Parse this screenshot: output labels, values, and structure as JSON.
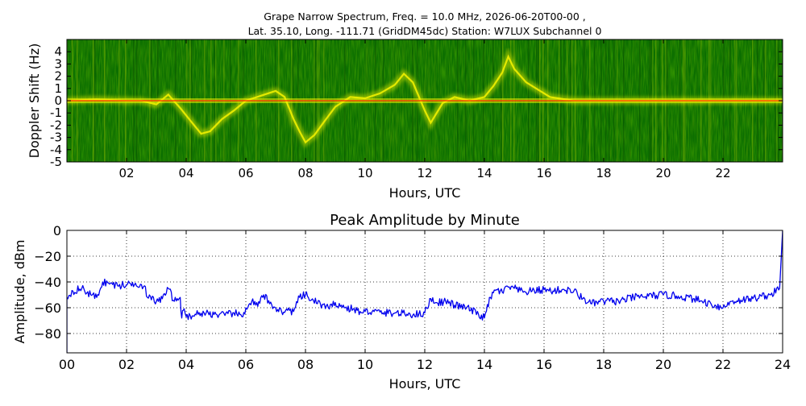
{
  "chart_data": [
    {
      "type": "heatmap",
      "title_line1": "Grape Narrow Spectrum, Freq. = 10.0 MHz, 2026-06-20T00-00 ,",
      "title_line2": "Lat.  35.10, Long. -111.71 (GridDM45dc) Station: W7LUX Subchannel 0",
      "xlabel": "Hours, UTC",
      "ylabel": "Doppler Shift (Hz)",
      "xlim": [
        0,
        24
      ],
      "ylim": [
        -5,
        5
      ],
      "x_tick_values": [
        2,
        4,
        6,
        8,
        10,
        12,
        14,
        16,
        18,
        20,
        22
      ],
      "x_tick_labels": [
        "02",
        "04",
        "06",
        "08",
        "10",
        "12",
        "14",
        "16",
        "18",
        "20",
        "22"
      ],
      "y_tick_values": [
        4,
        3,
        2,
        1,
        0,
        -1,
        -2,
        -3,
        -4,
        -5
      ],
      "y_tick_labels": [
        "4",
        "3",
        "2",
        "1",
        "0",
        "-1",
        "-2",
        "-3",
        "-4",
        "-5"
      ],
      "colors": {
        "background": "#0b6e00",
        "dark": "#075200",
        "mid": "#6fa800",
        "yellow": "#f0f000",
        "carrier": "#ff3000"
      },
      "carrier_offset_hz": 0.0,
      "doppler_trace": [
        [
          0.0,
          0.0
        ],
        [
          1.0,
          0.1
        ],
        [
          2.0,
          0.0
        ],
        [
          2.5,
          0.0
        ],
        [
          3.0,
          -0.3
        ],
        [
          3.4,
          0.5
        ],
        [
          3.8,
          -0.6
        ],
        [
          4.2,
          -1.8
        ],
        [
          4.5,
          -2.7
        ],
        [
          4.8,
          -2.5
        ],
        [
          5.2,
          -1.5
        ],
        [
          5.6,
          -0.8
        ],
        [
          6.0,
          0.0
        ],
        [
          6.5,
          0.4
        ],
        [
          7.0,
          0.8
        ],
        [
          7.3,
          0.3
        ],
        [
          7.6,
          -1.5
        ],
        [
          7.8,
          -2.5
        ],
        [
          8.0,
          -3.4
        ],
        [
          8.3,
          -2.8
        ],
        [
          8.6,
          -1.8
        ],
        [
          9.0,
          -0.5
        ],
        [
          9.5,
          0.3
        ],
        [
          10.0,
          0.2
        ],
        [
          10.5,
          0.6
        ],
        [
          11.0,
          1.3
        ],
        [
          11.3,
          2.2
        ],
        [
          11.6,
          1.5
        ],
        [
          12.0,
          -0.8
        ],
        [
          12.2,
          -1.8
        ],
        [
          12.6,
          -0.2
        ],
        [
          13.0,
          0.3
        ],
        [
          13.5,
          0.0
        ],
        [
          14.0,
          0.3
        ],
        [
          14.3,
          1.2
        ],
        [
          14.6,
          2.3
        ],
        [
          14.8,
          3.6
        ],
        [
          15.0,
          2.6
        ],
        [
          15.4,
          1.5
        ],
        [
          15.8,
          0.9
        ],
        [
          16.2,
          0.3
        ],
        [
          17.0,
          0.0
        ],
        [
          20.0,
          0.0
        ],
        [
          24.0,
          0.0
        ]
      ]
    },
    {
      "type": "line",
      "title": "Peak Amplitude by Minute",
      "xlabel": "Hours, UTC",
      "ylabel": "Amplitude, dBm",
      "xlim": [
        0,
        24
      ],
      "ylim": [
        -95,
        0
      ],
      "grid": true,
      "line_color": "#0000ee",
      "x_tick_values": [
        0,
        2,
        4,
        6,
        8,
        10,
        12,
        14,
        16,
        18,
        20,
        22,
        24
      ],
      "x_tick_labels": [
        "00",
        "02",
        "04",
        "06",
        "08",
        "10",
        "12",
        "14",
        "16",
        "18",
        "20",
        "22",
        "24"
      ],
      "y_tick_values": [
        0,
        -20,
        -40,
        -60,
        -80
      ],
      "y_tick_labels": [
        "0",
        "−20",
        "−40",
        "−60",
        "−80"
      ],
      "x": [
        0.0,
        0.2,
        0.5,
        0.8,
        1.0,
        1.2,
        1.4,
        1.7,
        2.0,
        2.3,
        2.6,
        2.7,
        3.0,
        3.2,
        3.4,
        3.6,
        3.8,
        3.85,
        3.9,
        4.0,
        4.3,
        4.6,
        5.0,
        5.3,
        5.6,
        5.9,
        6.0,
        6.2,
        6.4,
        6.6,
        6.8,
        7.0,
        7.2,
        7.4,
        7.6,
        7.8,
        8.0,
        8.2,
        8.5,
        8.8,
        9.0,
        9.3,
        9.6,
        9.9,
        10.0,
        10.3,
        10.6,
        11.0,
        11.4,
        11.8,
        12.0,
        12.2,
        12.4,
        12.7,
        13.0,
        13.4,
        13.8,
        14.0,
        14.2,
        14.4,
        14.6,
        14.8,
        15.0,
        15.3,
        15.6,
        16.0,
        16.3,
        16.6,
        17.0,
        17.3,
        17.6,
        18.0,
        18.5,
        19.0,
        19.5,
        20.0,
        20.5,
        21.0,
        21.3,
        21.6,
        22.0,
        22.3,
        22.6,
        23.0,
        23.3,
        23.6,
        23.9,
        24.0
      ],
      "y": [
        -52,
        -47,
        -45,
        -50,
        -52,
        -40,
        -41,
        -43,
        -42,
        -41,
        -43,
        -52,
        -55,
        -53,
        -45,
        -55,
        -52,
        -68,
        -62,
        -67,
        -65,
        -64,
        -65,
        -66,
        -64,
        -67,
        -60,
        -55,
        -59,
        -50,
        -57,
        -60,
        -63,
        -62,
        -63,
        -52,
        -50,
        -54,
        -57,
        -61,
        -56,
        -60,
        -61,
        -64,
        -63,
        -63,
        -64,
        -64,
        -65,
        -65,
        -64,
        -53,
        -56,
        -55,
        -58,
        -60,
        -65,
        -68,
        -52,
        -46,
        -48,
        -44,
        -45,
        -48,
        -47,
        -46,
        -47,
        -46,
        -47,
        -53,
        -57,
        -55,
        -55,
        -52,
        -51,
        -50,
        -51,
        -53,
        -55,
        -57,
        -60,
        -55,
        -54,
        -53,
        -51,
        -50,
        -45,
        0
      ]
    }
  ]
}
